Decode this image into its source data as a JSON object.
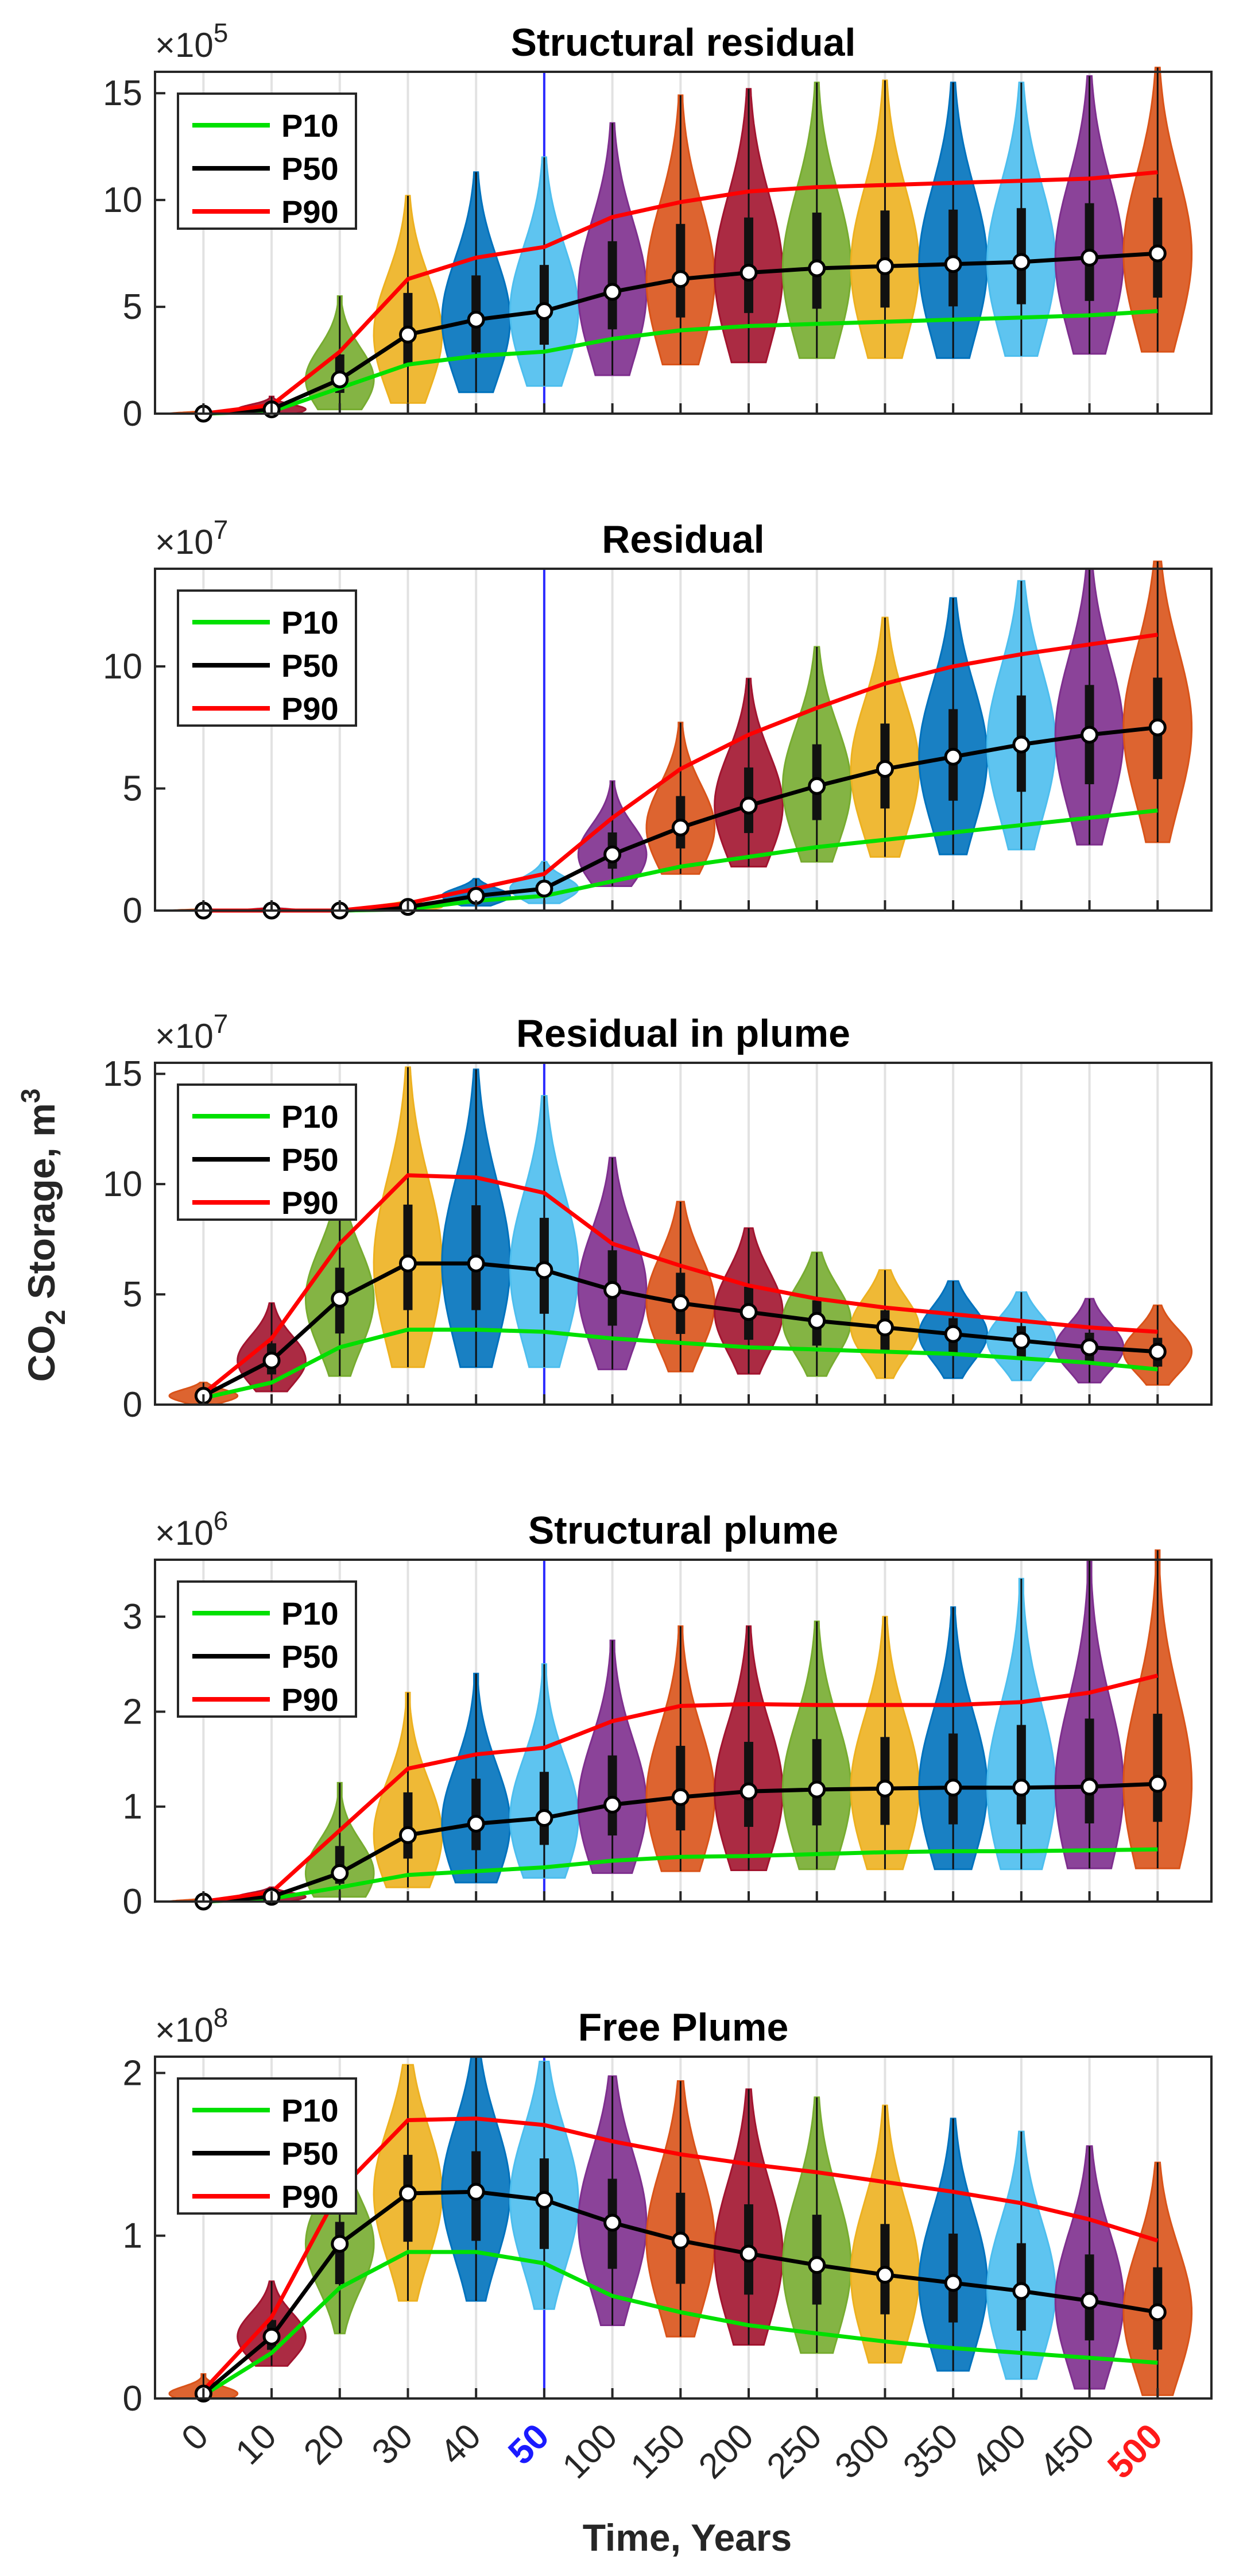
{
  "figure": {
    "ylabel_main": "CO",
    "ylabel_sub": "2",
    "ylabel_rest": " Storage, m",
    "ylabel_sup": "3",
    "xlabel": "Time, Years",
    "x_tick_labels": [
      "0",
      "10",
      "20",
      "30",
      "40",
      "50",
      "100",
      "150",
      "200",
      "250",
      "300",
      "350",
      "400",
      "450",
      "500"
    ],
    "highlight_colors": {
      "50": "#1a1aff",
      "500": "#ff1a1a"
    },
    "reference_line_at": "50",
    "reference_line_color": "#2b2bff",
    "violin_colors": [
      "#D95319",
      "#A2142F",
      "#77AC30",
      "#EDB120",
      "#0072BD",
      "#4DBEEE",
      "#7E2F8E",
      "#D95319",
      "#A2142F",
      "#77AC30",
      "#EDB120",
      "#0072BD",
      "#4DBEEE",
      "#7E2F8E",
      "#D95319"
    ]
  },
  "chart_data": [
    {
      "type": "violin",
      "title": "Structural residual",
      "exponent_base": "×10",
      "exponent_power": "5",
      "ylim": [
        0,
        16
      ],
      "yticks": [
        "0",
        "5",
        "10",
        "15"
      ],
      "ytick_values": [
        0,
        5,
        10,
        15
      ],
      "categories": [
        "0",
        "10",
        "20",
        "30",
        "40",
        "50",
        "100",
        "150",
        "200",
        "250",
        "300",
        "350",
        "400",
        "450",
        "500"
      ],
      "series": [
        {
          "name": "P10",
          "color": "#00e000",
          "values": [
            0,
            0.1,
            1.2,
            2.3,
            2.7,
            2.9,
            3.5,
            3.9,
            4.1,
            4.2,
            4.3,
            4.4,
            4.5,
            4.6,
            4.8
          ]
        },
        {
          "name": "P50",
          "color": "#000000",
          "values": [
            0,
            0.2,
            1.6,
            3.7,
            4.4,
            4.8,
            5.7,
            6.3,
            6.6,
            6.8,
            6.9,
            7.0,
            7.1,
            7.3,
            7.5
          ]
        },
        {
          "name": "P90",
          "color": "#ff0000",
          "values": [
            0,
            0.4,
            2.9,
            6.3,
            7.3,
            7.8,
            9.2,
            9.9,
            10.4,
            10.6,
            10.7,
            10.8,
            10.9,
            11.0,
            11.3
          ]
        }
      ],
      "violin_ranges": [
        [
          0,
          0.2
        ],
        [
          0,
          0.8
        ],
        [
          0.2,
          5.5
        ],
        [
          0.5,
          10.2
        ],
        [
          1.0,
          11.3
        ],
        [
          1.3,
          12.0
        ],
        [
          1.8,
          13.6
        ],
        [
          2.3,
          14.9
        ],
        [
          2.4,
          15.2
        ],
        [
          2.6,
          15.5
        ],
        [
          2.6,
          15.6
        ],
        [
          2.6,
          15.5
        ],
        [
          2.7,
          15.5
        ],
        [
          2.8,
          15.8
        ],
        [
          2.9,
          16.2
        ]
      ]
    },
    {
      "type": "violin",
      "title": "Residual",
      "exponent_base": "×10",
      "exponent_power": "7",
      "ylim": [
        0,
        14
      ],
      "yticks": [
        "0",
        "5",
        "10"
      ],
      "ytick_values": [
        0,
        5,
        10
      ],
      "categories": [
        "0",
        "10",
        "20",
        "30",
        "40",
        "50",
        "100",
        "150",
        "200",
        "250",
        "300",
        "350",
        "400",
        "450",
        "500"
      ],
      "series": [
        {
          "name": "P10",
          "color": "#00e000",
          "values": [
            0,
            0,
            0,
            0.05,
            0.4,
            0.6,
            1.2,
            1.8,
            2.2,
            2.6,
            2.9,
            3.2,
            3.5,
            3.8,
            4.1
          ]
        },
        {
          "name": "P50",
          "color": "#000000",
          "values": [
            0,
            0,
            0,
            0.15,
            0.6,
            0.9,
            2.3,
            3.4,
            4.3,
            5.1,
            5.8,
            6.3,
            6.8,
            7.2,
            7.5
          ]
        },
        {
          "name": "P90",
          "color": "#ff0000",
          "values": [
            0,
            0,
            0,
            0.3,
            0.9,
            1.5,
            3.8,
            5.8,
            7.2,
            8.3,
            9.3,
            10.0,
            10.5,
            10.9,
            11.3
          ]
        }
      ],
      "violin_ranges": [
        [
          0,
          0.1
        ],
        [
          0,
          0.2
        ],
        [
          0,
          0.1
        ],
        [
          0,
          0.4
        ],
        [
          0.2,
          1.3
        ],
        [
          0.3,
          2.0
        ],
        [
          1.0,
          5.3
        ],
        [
          1.5,
          7.7
        ],
        [
          1.8,
          9.5
        ],
        [
          2.0,
          10.8
        ],
        [
          2.2,
          12.0
        ],
        [
          2.3,
          12.8
        ],
        [
          2.5,
          13.5
        ],
        [
          2.7,
          14.0
        ],
        [
          2.8,
          14.3
        ]
      ]
    },
    {
      "type": "violin",
      "title": "Residual in plume",
      "exponent_base": "×10",
      "exponent_power": "7",
      "ylim": [
        0,
        15.5
      ],
      "yticks": [
        "0",
        "5",
        "10",
        "15"
      ],
      "ytick_values": [
        0,
        5,
        10,
        15
      ],
      "categories": [
        "0",
        "10",
        "20",
        "30",
        "40",
        "50",
        "100",
        "150",
        "200",
        "250",
        "300",
        "350",
        "400",
        "450",
        "500"
      ],
      "series": [
        {
          "name": "P10",
          "color": "#00e000",
          "values": [
            0.3,
            1.0,
            2.6,
            3.4,
            3.4,
            3.3,
            3.0,
            2.8,
            2.6,
            2.5,
            2.4,
            2.3,
            2.1,
            1.9,
            1.6
          ]
        },
        {
          "name": "P50",
          "color": "#000000",
          "values": [
            0.4,
            2.0,
            4.8,
            6.4,
            6.4,
            6.1,
            5.2,
            4.6,
            4.2,
            3.8,
            3.5,
            3.2,
            2.9,
            2.6,
            2.4
          ]
        },
        {
          "name": "P90",
          "color": "#ff0000",
          "values": [
            0.5,
            3.0,
            7.3,
            10.4,
            10.3,
            9.6,
            7.3,
            6.3,
            5.4,
            4.8,
            4.4,
            4.1,
            3.8,
            3.5,
            3.3
          ]
        }
      ],
      "violin_ranges": [
        [
          0,
          1.0
        ],
        [
          0.6,
          4.6
        ],
        [
          1.3,
          9.5
        ],
        [
          1.7,
          15.3
        ],
        [
          1.7,
          15.2
        ],
        [
          1.7,
          14.0
        ],
        [
          1.6,
          11.2
        ],
        [
          1.5,
          9.2
        ],
        [
          1.4,
          8.0
        ],
        [
          1.3,
          6.9
        ],
        [
          1.2,
          6.1
        ],
        [
          1.2,
          5.6
        ],
        [
          1.1,
          5.1
        ],
        [
          1.0,
          4.8
        ],
        [
          0.9,
          4.5
        ]
      ]
    },
    {
      "type": "violin",
      "title": "Structural plume",
      "exponent_base": "×10",
      "exponent_power": "6",
      "ylim": [
        0,
        3.6
      ],
      "yticks": [
        "0",
        "1",
        "2",
        "3"
      ],
      "ytick_values": [
        0,
        1,
        2,
        3
      ],
      "categories": [
        "0",
        "10",
        "20",
        "30",
        "40",
        "50",
        "100",
        "150",
        "200",
        "250",
        "300",
        "350",
        "400",
        "450",
        "500"
      ],
      "series": [
        {
          "name": "P10",
          "color": "#00e000",
          "values": [
            0,
            0.03,
            0.15,
            0.28,
            0.32,
            0.36,
            0.43,
            0.47,
            0.48,
            0.5,
            0.52,
            0.53,
            0.53,
            0.54,
            0.55
          ]
        },
        {
          "name": "P50",
          "color": "#000000",
          "values": [
            0,
            0.05,
            0.3,
            0.7,
            0.82,
            0.88,
            1.02,
            1.1,
            1.16,
            1.18,
            1.19,
            1.2,
            1.2,
            1.21,
            1.24
          ]
        },
        {
          "name": "P90",
          "color": "#ff0000",
          "values": [
            0,
            0.1,
            0.75,
            1.4,
            1.55,
            1.62,
            1.9,
            2.06,
            2.08,
            2.07,
            2.07,
            2.07,
            2.1,
            2.2,
            2.38
          ]
        }
      ],
      "violin_ranges": [
        [
          0,
          0.05
        ],
        [
          0,
          0.15
        ],
        [
          0.05,
          1.25
        ],
        [
          0.15,
          2.2
        ],
        [
          0.2,
          2.4
        ],
        [
          0.25,
          2.5
        ],
        [
          0.3,
          2.75
        ],
        [
          0.32,
          2.9
        ],
        [
          0.33,
          2.9
        ],
        [
          0.34,
          2.95
        ],
        [
          0.34,
          3.0
        ],
        [
          0.34,
          3.1
        ],
        [
          0.34,
          3.4
        ],
        [
          0.35,
          3.6
        ],
        [
          0.35,
          3.7
        ]
      ]
    },
    {
      "type": "violin",
      "title": "Free Plume",
      "exponent_base": "×10",
      "exponent_power": "8",
      "ylim": [
        0,
        2.1
      ],
      "yticks": [
        "0",
        "1",
        "2"
      ],
      "ytick_values": [
        0,
        1,
        2
      ],
      "categories": [
        "0",
        "10",
        "20",
        "30",
        "40",
        "50",
        "100",
        "150",
        "200",
        "250",
        "300",
        "350",
        "400",
        "450",
        "500"
      ],
      "series": [
        {
          "name": "P10",
          "color": "#00e000",
          "values": [
            0.02,
            0.28,
            0.68,
            0.9,
            0.9,
            0.83,
            0.63,
            0.53,
            0.45,
            0.4,
            0.35,
            0.31,
            0.28,
            0.25,
            0.22
          ]
        },
        {
          "name": "P50",
          "color": "#000000",
          "values": [
            0.03,
            0.38,
            0.95,
            1.26,
            1.27,
            1.22,
            1.08,
            0.97,
            0.89,
            0.82,
            0.76,
            0.71,
            0.66,
            0.6,
            0.53
          ]
        },
        {
          "name": "P90",
          "color": "#ff0000",
          "values": [
            0.05,
            0.5,
            1.28,
            1.71,
            1.72,
            1.68,
            1.58,
            1.5,
            1.44,
            1.39,
            1.33,
            1.27,
            1.2,
            1.1,
            0.97
          ]
        }
      ],
      "violin_ranges": [
        [
          0,
          0.15
        ],
        [
          0.2,
          0.72
        ],
        [
          0.4,
          1.4
        ],
        [
          0.6,
          2.05
        ],
        [
          0.6,
          2.1
        ],
        [
          0.55,
          2.07
        ],
        [
          0.45,
          1.98
        ],
        [
          0.38,
          1.95
        ],
        [
          0.33,
          1.9
        ],
        [
          0.28,
          1.85
        ],
        [
          0.22,
          1.8
        ],
        [
          0.17,
          1.72
        ],
        [
          0.12,
          1.64
        ],
        [
          0.06,
          1.55
        ],
        [
          0.02,
          1.45
        ]
      ]
    }
  ]
}
